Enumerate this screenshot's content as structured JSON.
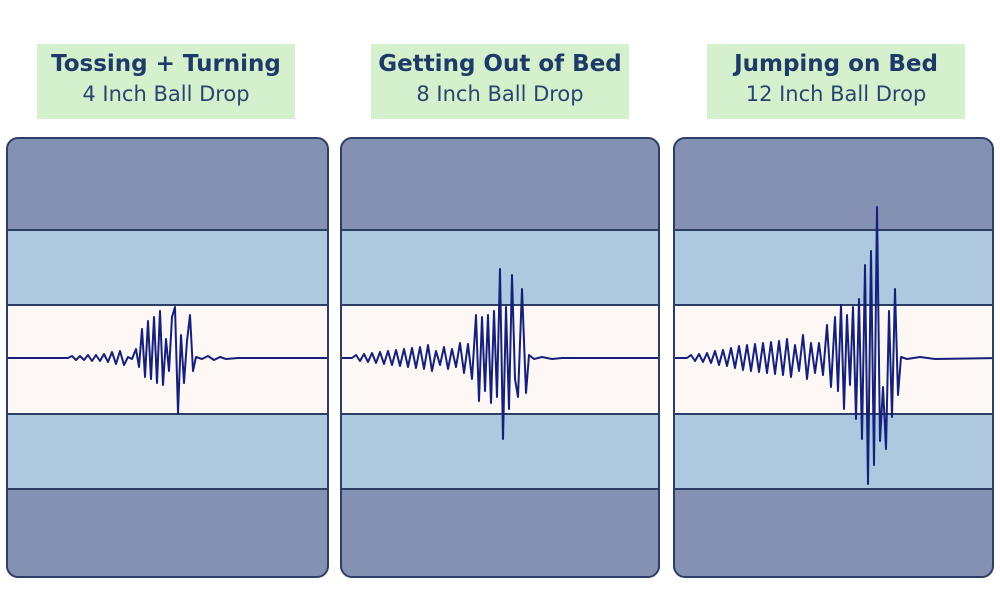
{
  "panels": [
    {
      "title": "Tossing + Turning",
      "subtitle": "4 Inch Ball Drop"
    },
    {
      "title": "Getting Out of Bed",
      "subtitle": "8 Inch Ball Drop"
    },
    {
      "title": "Jumping on Bed",
      "subtitle": "12 Inch Ball Drop"
    }
  ],
  "colors": {
    "label_bg": "#d5f0cc",
    "label_text": "#1f3a68",
    "outer_band": "#8591b3",
    "mid_band": "#adc8df",
    "center_band": "#fdf8f5",
    "band_lines": "#2d3e66",
    "wave": "#15207a"
  }
}
